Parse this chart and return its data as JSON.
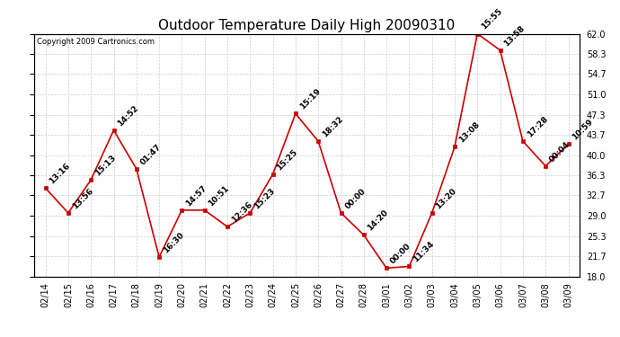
{
  "title": "Outdoor Temperature Daily High 20090310",
  "copyright": "Copyright 2009 Cartronics.com",
  "x_labels": [
    "02/14",
    "02/15",
    "02/16",
    "02/17",
    "02/18",
    "02/19",
    "02/20",
    "02/21",
    "02/22",
    "02/23",
    "02/24",
    "02/25",
    "02/26",
    "02/27",
    "02/28",
    "03/01",
    "03/02",
    "03/03",
    "03/04",
    "03/05",
    "03/06",
    "03/07",
    "03/08",
    "03/09"
  ],
  "y_values": [
    34.0,
    29.5,
    35.5,
    44.5,
    37.5,
    21.5,
    30.0,
    30.0,
    27.0,
    29.5,
    36.5,
    47.5,
    42.5,
    29.5,
    25.5,
    19.5,
    19.8,
    29.5,
    41.5,
    62.0,
    59.0,
    42.5,
    38.0,
    42.0
  ],
  "annotations": [
    "13:16",
    "13:56",
    "15:13",
    "14:52",
    "01:47",
    "16:30",
    "14:57",
    "10:51",
    "12:36",
    "15:23",
    "15:25",
    "15:19",
    "18:32",
    "00:00",
    "14:20",
    "00:00",
    "11:34",
    "13:20",
    "13:08",
    "15:55",
    "13:58",
    "17:28",
    "00:04",
    "10:59"
  ],
  "line_color": "#cc0000",
  "marker_color": "#cc0000",
  "grid_color": "#cccccc",
  "bg_color": "#ffffff",
  "plot_bg_color": "#ffffff",
  "title_fontsize": 11,
  "tick_fontsize": 7,
  "annotation_fontsize": 6.5,
  "y_ticks": [
    18.0,
    21.7,
    25.3,
    29.0,
    32.7,
    36.3,
    40.0,
    43.7,
    47.3,
    51.0,
    54.7,
    58.3,
    62.0
  ],
  "ylim": [
    18.0,
    62.0
  ]
}
